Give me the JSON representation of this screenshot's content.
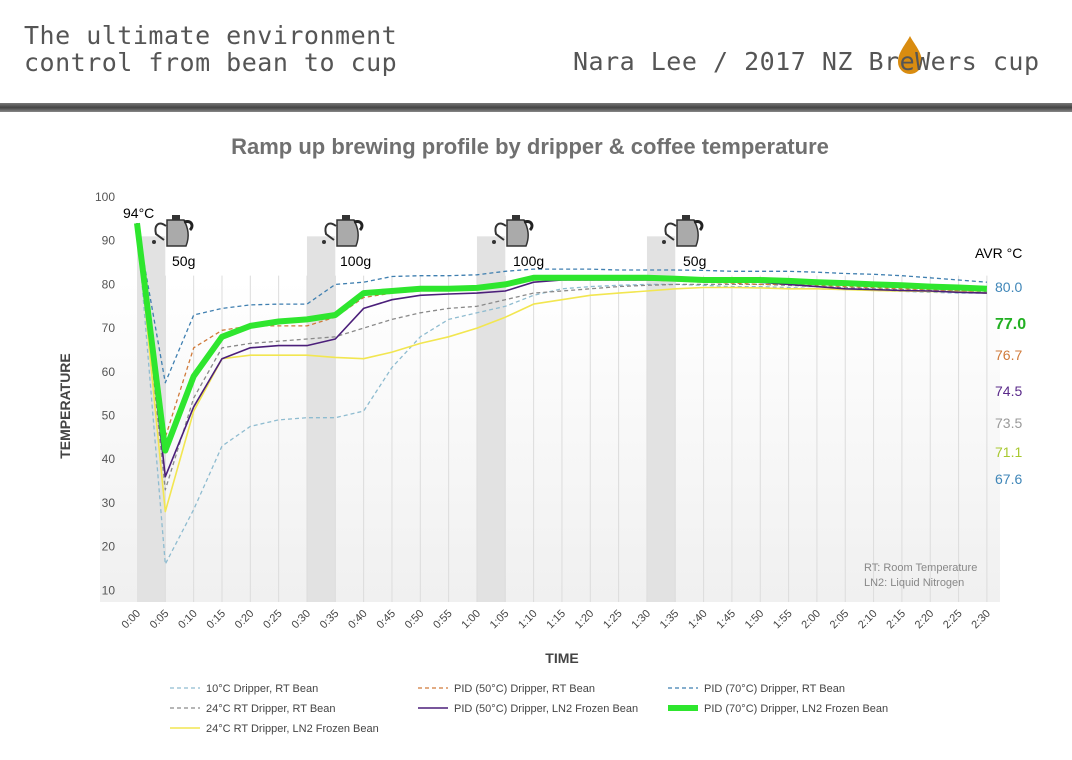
{
  "header": {
    "left_line1": "The ultimate environment",
    "left_line2": "control from bean to cup",
    "right": "Nara Lee / 2017 NZ BreWers cup",
    "logo_color": "#d98c10"
  },
  "chart_data": {
    "type": "line",
    "title": "Ramp up brewing profile by dripper & coffee temperature",
    "xlabel": "TIME",
    "ylabel": "TEMPERATURE",
    "ylim": [
      10,
      100
    ],
    "yticks": [
      10,
      20,
      30,
      40,
      50,
      60,
      70,
      80,
      90,
      100
    ],
    "grid": "vertical",
    "legend_placement": "bottom",
    "x": [
      "0:00",
      "0:05",
      "0:10",
      "0:15",
      "0:20",
      "0:25",
      "0:30",
      "0:35",
      "0:40",
      "0:45",
      "0:50",
      "0:55",
      "1:00",
      "1:05",
      "1:10",
      "1:15",
      "1:20",
      "1:25",
      "1:30",
      "1:35",
      "1:40",
      "1:45",
      "1:50",
      "1:55",
      "2:00",
      "2:05",
      "2:10",
      "2:15",
      "2:20",
      "2:25",
      "2:30"
    ],
    "start_label": "94°C",
    "pour_bands": [
      [
        "0:00",
        "0:05"
      ],
      [
        "0:30",
        "0:35"
      ],
      [
        "1:00",
        "1:05"
      ],
      [
        "1:30",
        "1:35"
      ]
    ],
    "pours": [
      "50g",
      "100g",
      "100g",
      "50g"
    ],
    "avg_title": "AVR °C",
    "averages": [
      {
        "value": "80.0",
        "color": "#3f86b8",
        "bold": false
      },
      {
        "value": "77.0",
        "color": "#22b022",
        "bold": true
      },
      {
        "value": "76.7",
        "color": "#d07a3a",
        "bold": false
      },
      {
        "value": "74.5",
        "color": "#5a2a8a",
        "bold": false
      },
      {
        "value": "73.5",
        "color": "#9a9a9a",
        "bold": false
      },
      {
        "value": "71.1",
        "color": "#a8c830",
        "bold": false
      },
      {
        "value": "67.6",
        "color": "#3f86b8",
        "bold": false
      }
    ],
    "notes": [
      "RT: Room Temperature",
      "LN2: Liquid Nitrogen"
    ],
    "series": [
      {
        "name": "10°C Dripper, RT Bean",
        "color": "#8fbcd0",
        "style": "dashed",
        "width": 1.3,
        "values": [
          94,
          16,
          28.5,
          43,
          47.5,
          49,
          49.5,
          49.5,
          51,
          61,
          68,
          72,
          73.5,
          75,
          77.5,
          79,
          79.5,
          79.8,
          80,
          80,
          79.8,
          79.5,
          79.5,
          79.3,
          79,
          78.8,
          78.6,
          78.4,
          78.2,
          78,
          78
        ]
      },
      {
        "name": "24°C RT Dripper, RT Bean",
        "color": "#8a8a8a",
        "style": "dashed",
        "width": 1.3,
        "values": [
          94,
          33,
          54,
          65.5,
          66.5,
          67,
          67.5,
          68,
          70,
          72,
          73.5,
          74.5,
          75,
          76.5,
          78,
          78.5,
          79,
          79.5,
          79.8,
          80,
          80,
          80,
          80,
          79.8,
          79.5,
          79.3,
          79,
          78.8,
          78.6,
          78.5,
          78.3
        ]
      },
      {
        "name": "24°C RT Dripper, LN2 Frozen Bean",
        "color": "#f2e650",
        "style": "solid",
        "width": 1.6,
        "values": [
          94,
          28,
          51,
          63,
          63.8,
          63.8,
          63.8,
          63.3,
          63,
          64.5,
          66.5,
          68,
          70,
          72.5,
          75.5,
          76.5,
          77.5,
          78,
          78.5,
          79,
          79.3,
          79.3,
          79.2,
          79,
          79,
          78.8,
          78.6,
          78.5,
          78.4,
          78.3,
          78
        ]
      },
      {
        "name": "PID (50°C) Dripper, RT Bean",
        "color": "#d07a3a",
        "style": "dashed",
        "width": 1.3,
        "values": [
          94,
          45,
          65.5,
          69.5,
          70.5,
          70.5,
          70.5,
          72.5,
          77,
          78,
          78.5,
          78.7,
          79,
          80,
          81,
          81,
          81,
          81,
          81,
          80.8,
          80.5,
          80.3,
          80,
          80,
          79.8,
          79.5,
          79.3,
          79,
          78.8,
          78.6,
          78.5
        ]
      },
      {
        "name": "PID (50°C) Dripper, LN2 Frozen Bean",
        "color": "#4b1f7a",
        "style": "solid",
        "width": 1.6,
        "values": [
          94,
          36,
          52,
          63,
          65.5,
          66,
          66,
          67.5,
          74.5,
          76.5,
          77.5,
          77.8,
          78,
          78.5,
          80.5,
          81,
          81,
          81,
          81,
          81,
          81,
          80.8,
          80.5,
          80,
          79.5,
          79,
          78.8,
          78.6,
          78.5,
          78.2,
          78
        ]
      },
      {
        "name": "PID (70°C) Dripper, RT Bean",
        "color": "#3f7fb0",
        "style": "dashed",
        "width": 1.3,
        "values": [
          94,
          57.5,
          73,
          74.5,
          75.3,
          75.5,
          75.5,
          80,
          80.5,
          81.8,
          82,
          82,
          82.2,
          83,
          83.5,
          83.5,
          83.5,
          83.3,
          83.3,
          83.3,
          83.2,
          83,
          83,
          83,
          82.8,
          82.5,
          82.3,
          82,
          81.5,
          81,
          80.5
        ]
      },
      {
        "name": "PID (70°C) Dripper, LN2 Frozen Bean",
        "color": "#2ee62e",
        "style": "solid",
        "width": 6,
        "values": [
          94,
          42,
          59,
          68,
          70.5,
          71.5,
          72,
          73,
          78,
          78.5,
          79,
          79,
          79.2,
          80,
          81.5,
          81.5,
          81.5,
          81.5,
          81.5,
          81.3,
          81,
          81,
          81,
          80.8,
          80.5,
          80.3,
          80,
          79.8,
          79.5,
          79.3,
          79
        ]
      }
    ],
    "legend_order": [
      0,
      3,
      5,
      1,
      4,
      6,
      2
    ]
  }
}
